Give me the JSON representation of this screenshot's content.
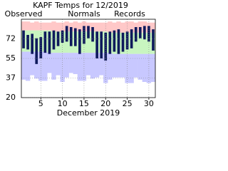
{
  "chart_data": {
    "type": "daily-range",
    "title": "KAPF Temps for 12/2019",
    "x_label": "December 2019",
    "x": [
      1,
      2,
      3,
      4,
      5,
      6,
      7,
      8,
      9,
      10,
      11,
      12,
      13,
      14,
      15,
      16,
      17,
      18,
      19,
      20,
      21,
      22,
      23,
      24,
      25,
      26,
      27,
      28,
      29,
      30,
      31
    ],
    "xlim": [
      0.5,
      31.5
    ],
    "xticks": [
      5,
      10,
      15,
      20,
      25,
      30
    ],
    "ylim": [
      20,
      90
    ],
    "yticks": [
      20,
      {
        "value": 37.5,
        "label": "37"
      },
      55,
      {
        "value": 72.5,
        "label": "72"
      }
    ],
    "grid": true,
    "series": [
      {
        "name": "Observed",
        "color": "#0f1a5c",
        "highs": [
          80,
          76,
          77,
          73,
          74,
          79,
          79,
          80,
          79,
          80,
          84,
          83,
          82,
          81,
          84,
          84,
          83,
          79,
          79,
          78,
          79,
          80,
          81,
          78,
          79,
          81,
          83,
          83,
          84,
          84,
          81
        ],
        "lows": [
          64,
          63,
          59,
          50,
          55,
          60,
          59,
          63,
          66,
          69,
          70,
          66,
          66,
          59,
          68,
          73,
          70,
          55,
          55,
          53,
          59,
          61,
          59,
          61,
          63,
          64,
          70,
          73,
          72,
          70,
          62
        ]
      },
      {
        "name": "Normals",
        "color": "#008000",
        "fill": "#c8f5c0",
        "highs": [
          80,
          80,
          80,
          80,
          80,
          80,
          80,
          79,
          79,
          79,
          79,
          79,
          79,
          79,
          79,
          79,
          79,
          79,
          79,
          79,
          78,
          78,
          78,
          78,
          78,
          78,
          78,
          78,
          78,
          78,
          78
        ],
        "lows": [
          61,
          61,
          61,
          61,
          61,
          61,
          60,
          60,
          60,
          60,
          60,
          60,
          60,
          60,
          60,
          60,
          60,
          60,
          60,
          60,
          60,
          59,
          59,
          59,
          59,
          59,
          59,
          59,
          59,
          59,
          59
        ]
      },
      {
        "name": "Records",
        "color": "#cc88cc",
        "fill_high": "#ffc8c8",
        "fill_low": "#c8c8ff",
        "highs": [
          88,
          88,
          87,
          88,
          87,
          87,
          87,
          88,
          87,
          87,
          88,
          87,
          88,
          87,
          88,
          87,
          87,
          87,
          87,
          87,
          88,
          87,
          88,
          87,
          88,
          88,
          87,
          88,
          88,
          87,
          87
        ],
        "lows": [
          36,
          35,
          40,
          37,
          35,
          35,
          42,
          36,
          40,
          34,
          38,
          42,
          41,
          35,
          35,
          40,
          37,
          38,
          40,
          33,
          36,
          38,
          38,
          38,
          33,
          33,
          38,
          36,
          34,
          33,
          34
        ]
      }
    ]
  }
}
